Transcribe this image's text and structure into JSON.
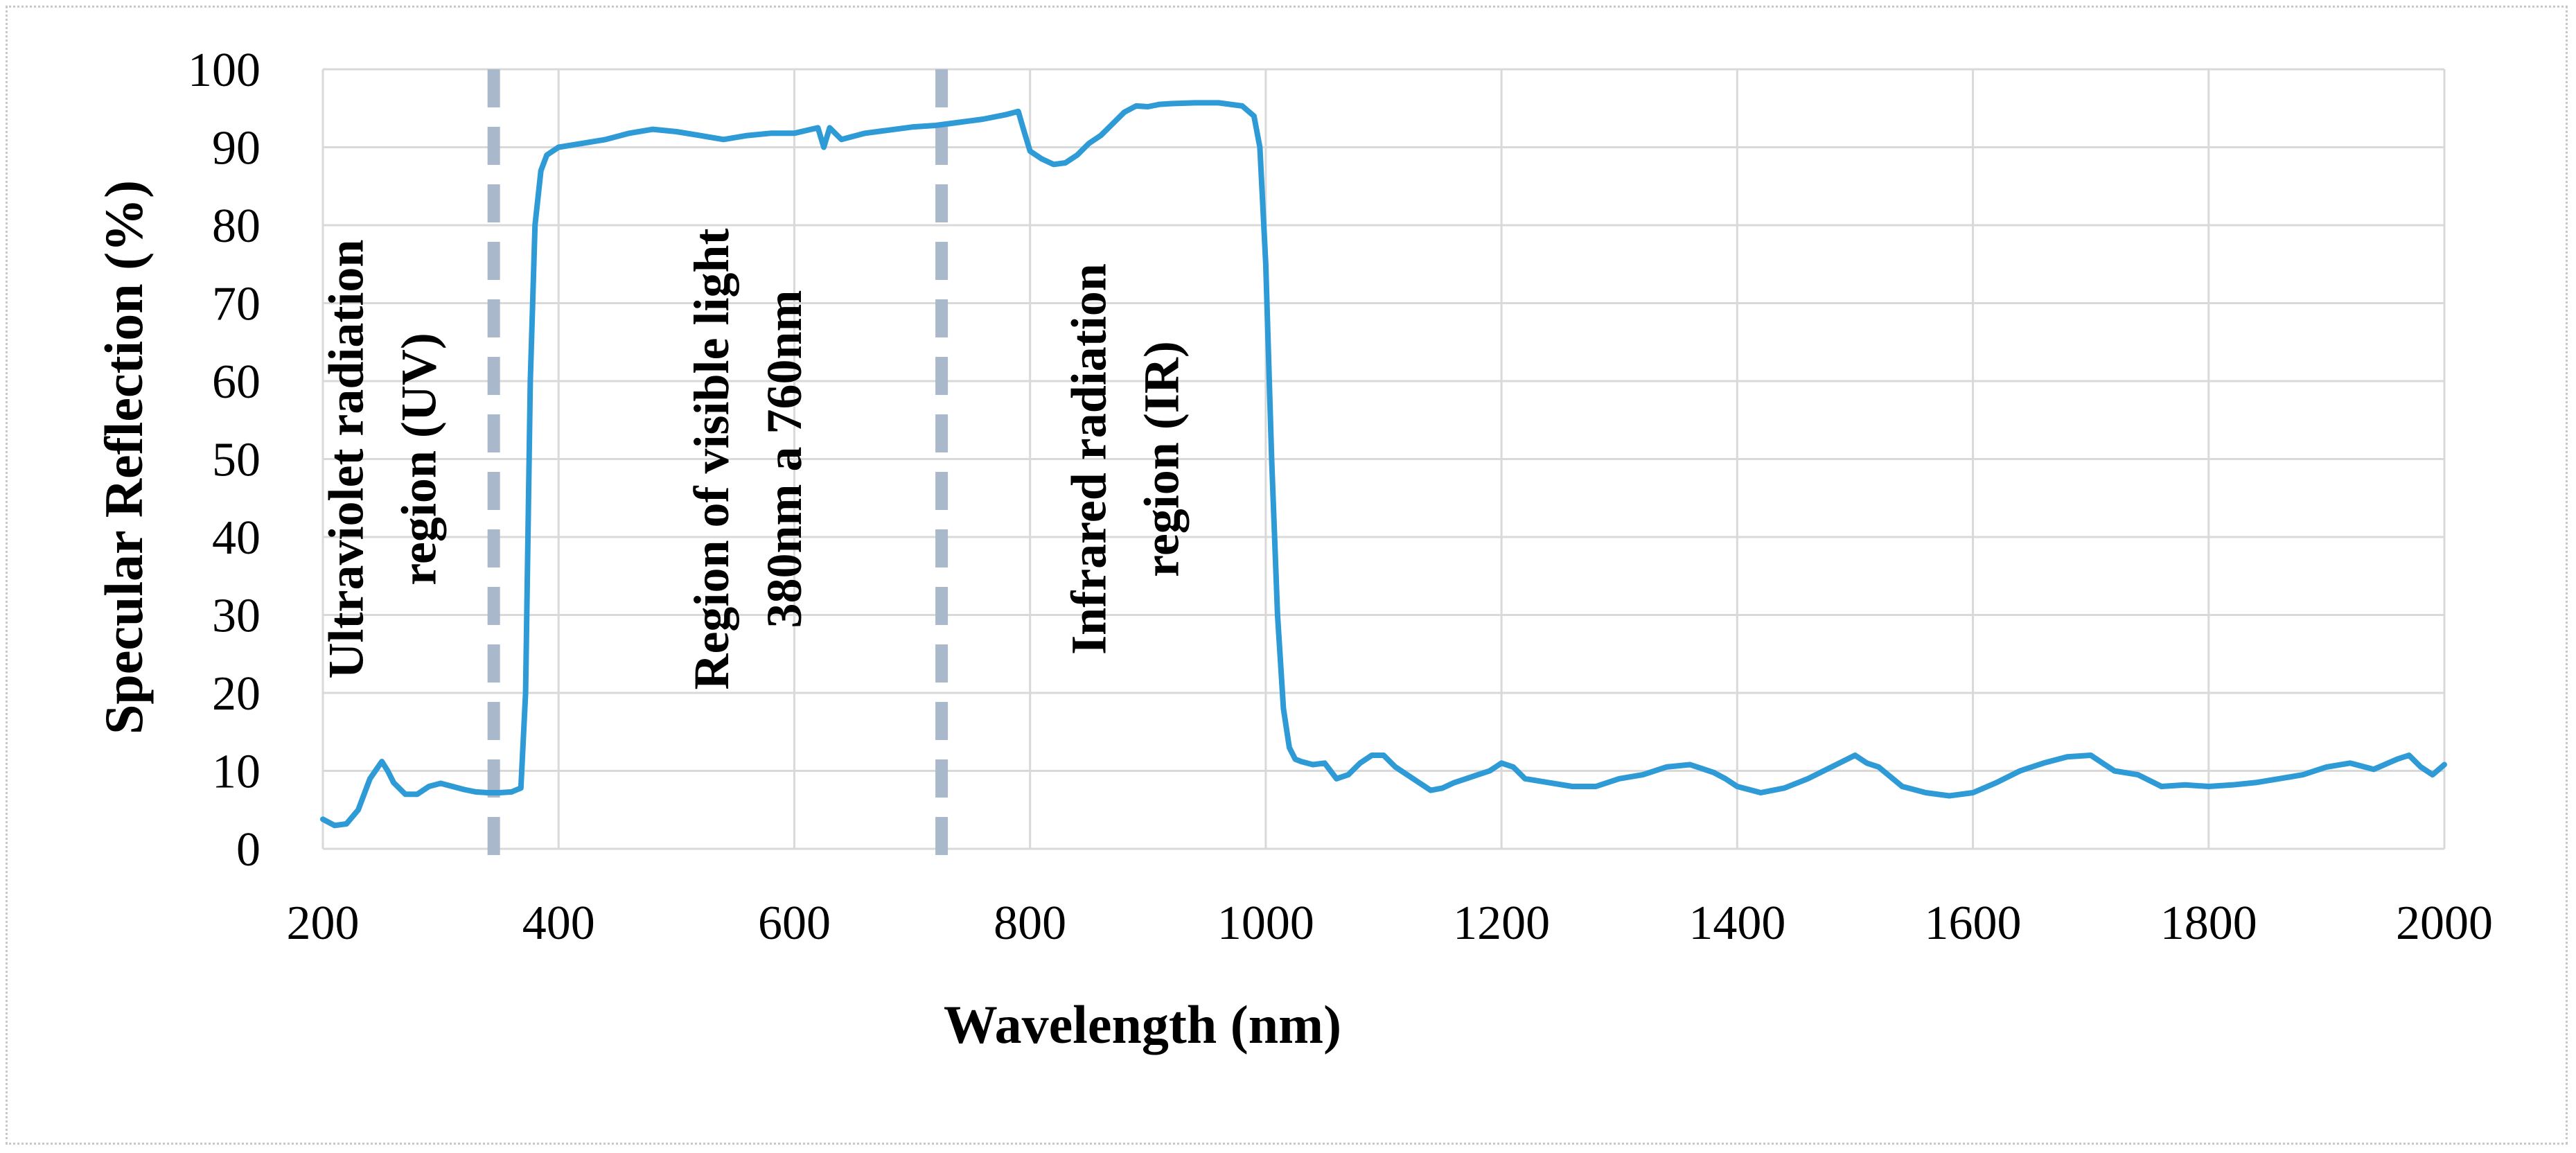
{
  "chart_data": {
    "type": "line",
    "title": "",
    "xlabel": "Wavelength (nm)",
    "ylabel": "Specular Reflection (%)",
    "xlim": [
      200,
      2000
    ],
    "ylim": [
      0,
      100
    ],
    "x_ticks": [
      200,
      400,
      600,
      800,
      1000,
      1200,
      1400,
      1600,
      1800,
      2000
    ],
    "y_ticks": [
      0,
      10,
      20,
      30,
      40,
      50,
      60,
      70,
      80,
      90,
      100
    ],
    "grid": true,
    "legend": "none",
    "series": [
      {
        "name": "Specular Reflection",
        "color": "#2E9AD6",
        "x": [
          200,
          210,
          220,
          230,
          240,
          250,
          255,
          260,
          270,
          280,
          290,
          300,
          310,
          320,
          330,
          340,
          350,
          360,
          368,
          372,
          376,
          380,
          385,
          390,
          395,
          400,
          420,
          440,
          460,
          480,
          500,
          520,
          540,
          560,
          580,
          600,
          620,
          625,
          630,
          640,
          660,
          680,
          700,
          720,
          740,
          760,
          780,
          790,
          795,
          800,
          810,
          820,
          830,
          840,
          850,
          860,
          870,
          880,
          890,
          900,
          910,
          920,
          940,
          960,
          980,
          990,
          995,
          1000,
          1005,
          1010,
          1015,
          1020,
          1025,
          1030,
          1040,
          1050,
          1060,
          1070,
          1080,
          1090,
          1100,
          1110,
          1120,
          1130,
          1140,
          1150,
          1160,
          1170,
          1180,
          1190,
          1200,
          1210,
          1220,
          1240,
          1260,
          1280,
          1300,
          1320,
          1340,
          1360,
          1380,
          1390,
          1400,
          1420,
          1440,
          1460,
          1480,
          1500,
          1510,
          1520,
          1540,
          1560,
          1580,
          1600,
          1620,
          1640,
          1660,
          1680,
          1700,
          1710,
          1720,
          1740,
          1760,
          1780,
          1800,
          1820,
          1840,
          1860,
          1880,
          1900,
          1920,
          1940,
          1960,
          1970,
          1980,
          1990,
          2000
        ],
        "values": [
          3.8,
          3,
          3.2,
          5,
          9,
          11.2,
          10,
          8.5,
          7,
          7,
          8,
          8.4,
          8,
          7.6,
          7.3,
          7.2,
          7.2,
          7.3,
          7.8,
          20,
          60,
          80,
          87,
          89,
          89.5,
          90,
          90.5,
          91,
          91.8,
          92.3,
          92,
          91.5,
          91,
          91.5,
          91.8,
          91.8,
          92.5,
          90,
          92.5,
          91,
          91.8,
          92.2,
          92.6,
          92.8,
          93.2,
          93.6,
          94.2,
          94.6,
          92,
          89.5,
          88.5,
          87.8,
          88,
          89,
          90.5,
          91.5,
          93,
          94.5,
          95.3,
          95.2,
          95.5,
          95.6,
          95.7,
          95.7,
          95.3,
          94,
          90,
          75,
          50,
          30,
          18,
          13,
          11.5,
          11.2,
          10.8,
          11,
          9,
          9.5,
          11,
          12,
          12,
          10.5,
          9.5,
          8.5,
          7.5,
          7.8,
          8.5,
          9,
          9.5,
          10,
          11,
          10.5,
          9,
          8.5,
          8,
          8,
          9,
          9.5,
          10.5,
          10.8,
          9.8,
          9,
          8,
          7.2,
          7.8,
          9,
          10.5,
          12,
          11,
          10.5,
          8,
          7.2,
          6.8,
          7.2,
          8.5,
          10,
          11,
          11.8,
          12,
          11,
          10,
          9.5,
          8,
          8.2,
          8,
          8.2,
          8.5,
          9,
          9.5,
          10.5,
          11,
          10.2,
          11.5,
          12,
          10.5,
          9.5,
          10.8
        ]
      }
    ],
    "markers": [
      {
        "name": "uv-visible-boundary",
        "x": 345,
        "color": "#A9B8CA"
      },
      {
        "name": "visible-ir-boundary",
        "x": 725,
        "color": "#A9B8CA"
      }
    ],
    "annotations": [
      {
        "name": "uv",
        "lines": [
          "Ultraviolet radiation",
          "region (UV)"
        ],
        "x": 250,
        "y": 50
      },
      {
        "name": "visible",
        "lines": [
          "Region of visible light",
          "380nm a 760nm"
        ],
        "x": 560,
        "y": 50
      },
      {
        "name": "ir",
        "lines": [
          "Infrared radiation",
          "region (IR)"
        ],
        "x": 880,
        "y": 50
      }
    ]
  }
}
